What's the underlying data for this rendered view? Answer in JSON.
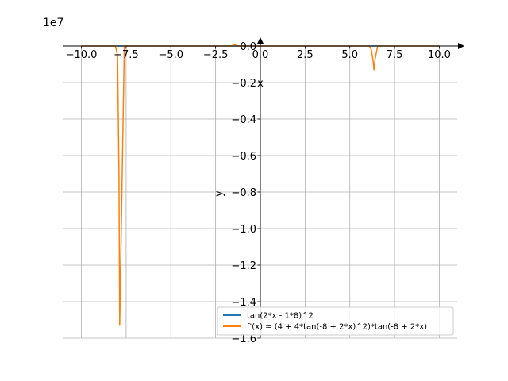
{
  "chart_data": {
    "type": "line",
    "offset_text": "1e7",
    "xlabel": "x",
    "ylabel": "y",
    "xlim": [
      -11,
      11
    ],
    "ylim": [
      -1.6,
      0.0
    ],
    "y_scale": 10000000,
    "grid": true,
    "legend_position": "lower-right",
    "x_ticks": [
      -10.0,
      -7.5,
      -5.0,
      -2.5,
      0.0,
      2.5,
      5.0,
      7.5,
      10.0
    ],
    "x_tick_labels": [
      "−10.0",
      "−7.5",
      "−5.0",
      "−2.5",
      "0.0",
      "2.5",
      "5.0",
      "7.5",
      "10.0"
    ],
    "y_ticks": [
      0.0,
      -0.2,
      -0.4,
      -0.6,
      -0.8,
      -1.0,
      -1.2,
      -1.4,
      -1.6
    ],
    "y_tick_labels": [
      "0.0",
      "−0.2",
      "−0.4",
      "−0.6",
      "−0.8",
      "−1.0",
      "−1.2",
      "−1.4",
      "−1.6"
    ],
    "series": [
      {
        "name": "tan(2*x - 1*8)^2",
        "color": "#1f77b4",
        "x": [
          -10,
          -8,
          -6,
          -4,
          -2,
          0,
          2,
          4,
          6,
          8,
          10
        ],
        "y": [
          0,
          0,
          0,
          0,
          0,
          0,
          0,
          0,
          0,
          0,
          0
        ]
      },
      {
        "name": "f'(x) = (4 + 4*tan(-8 + 2*x)^2)*tan(-8 + 2*x)",
        "color": "#ff7f0e",
        "x": [
          -10,
          -8.1,
          -7.98,
          -7.9,
          -7.86,
          -7.6,
          -2.0,
          -1.6,
          -1.45,
          -1.3,
          0,
          6.1,
          6.2,
          6.3,
          6.35,
          6.4,
          6.55,
          10
        ],
        "y": [
          0,
          0,
          -0.05,
          -0.7,
          -1.53,
          0,
          0,
          0,
          0.01,
          0,
          0,
          0,
          -0.02,
          -0.08,
          -0.13,
          -0.08,
          0,
          0
        ]
      }
    ]
  }
}
